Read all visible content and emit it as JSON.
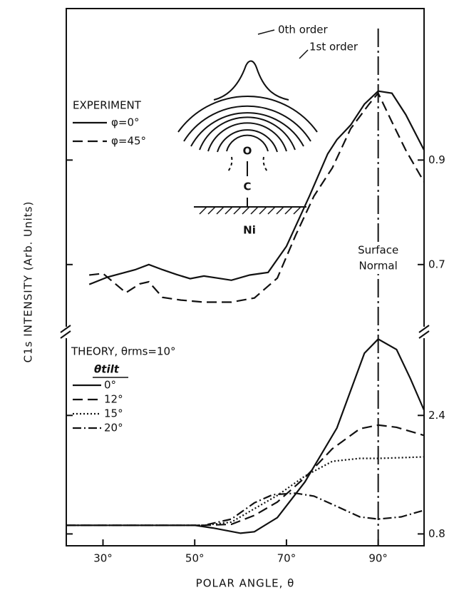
{
  "chart_data": [
    {
      "type": "line",
      "ylabel": "C1s INTENSITY (Arb. Units)",
      "legend_title": "EXPERIMENT",
      "xlim": [
        22,
        100
      ],
      "ylim": [
        0.57,
        1.19
      ],
      "yticks": [
        0.7,
        0.9
      ],
      "annotations": [
        "0th order",
        "1st order",
        "O",
        "C",
        "Ni"
      ],
      "surface_normal": {
        "x": 90,
        "label": [
          "Surface",
          "Normal"
        ]
      },
      "series": [
        {
          "name": "φ=0°",
          "color": "#111111",
          "dash": "solid",
          "x": [
            27,
            31,
            37,
            40,
            43,
            46,
            49,
            52,
            55,
            58,
            62,
            66,
            70,
            75,
            79,
            81,
            84,
            87,
            90,
            93,
            96,
            100
          ],
          "values": [
            0.662,
            0.676,
            0.69,
            0.7,
            0.69,
            0.681,
            0.673,
            0.678,
            0.674,
            0.67,
            0.68,
            0.685,
            0.735,
            0.831,
            0.912,
            0.939,
            0.967,
            1.007,
            1.032,
            1.028,
            0.987,
            0.919
          ]
        },
        {
          "name": "φ=45°",
          "color": "#111111",
          "dash": "dashed",
          "x": [
            27,
            30,
            35,
            38,
            40,
            43,
            47,
            52,
            58,
            63,
            68,
            72,
            76,
            80,
            84,
            88,
            90,
            93,
            96,
            100
          ],
          "values": [
            0.68,
            0.683,
            0.646,
            0.663,
            0.667,
            0.637,
            0.632,
            0.628,
            0.628,
            0.636,
            0.674,
            0.756,
            0.831,
            0.885,
            0.96,
            1.007,
            1.028,
            0.973,
            0.919,
            0.858
          ]
        }
      ]
    },
    {
      "type": "line",
      "xlabel": "POLAR ANGLE, θ",
      "legend_title": "THEORY, θrms=10°",
      "legend_subtitle": "θtilt",
      "xlim": [
        22,
        100
      ],
      "ylim": [
        0.64,
        3.52
      ],
      "yticks": [
        0.8,
        2.4
      ],
      "xticks": [
        {
          "value": 30,
          "label": "30°"
        },
        {
          "value": 50,
          "label": "50°"
        },
        {
          "value": 70,
          "label": "70°"
        },
        {
          "value": 90,
          "label": "90°"
        }
      ],
      "series": [
        {
          "name": "0°",
          "color": "#111111",
          "dash": "solid",
          "x": [
            22,
            50,
            54,
            60,
            63,
            68,
            74,
            81,
            87,
            90,
            94,
            97,
            100
          ],
          "values": [
            0.916,
            0.916,
            0.88,
            0.81,
            0.83,
            1.02,
            1.5,
            2.23,
            3.24,
            3.43,
            3.29,
            2.9,
            2.47
          ]
        },
        {
          "name": "12°",
          "color": "#111111",
          "dash": "dashed",
          "x": [
            22,
            52,
            58,
            63,
            68,
            74,
            80,
            86,
            90,
            94,
            100
          ],
          "values": [
            0.916,
            0.916,
            0.93,
            1.05,
            1.23,
            1.56,
            1.95,
            2.22,
            2.27,
            2.24,
            2.13
          ]
        },
        {
          "name": "15°",
          "color": "#111111",
          "dash": "dotted",
          "x": [
            22,
            52,
            58,
            63,
            68,
            74,
            80,
            86,
            90,
            95,
            100
          ],
          "values": [
            0.916,
            0.916,
            0.96,
            1.14,
            1.32,
            1.58,
            1.78,
            1.82,
            1.82,
            1.83,
            1.84
          ]
        },
        {
          "name": "20°",
          "color": "#111111",
          "dash": "dashdot",
          "x": [
            22,
            52,
            58,
            63,
            67,
            72,
            76,
            80,
            86,
            90,
            95,
            100
          ],
          "values": [
            0.916,
            0.916,
            1.0,
            1.22,
            1.33,
            1.35,
            1.31,
            1.2,
            1.03,
            1.0,
            1.03,
            1.12
          ]
        }
      ]
    }
  ]
}
